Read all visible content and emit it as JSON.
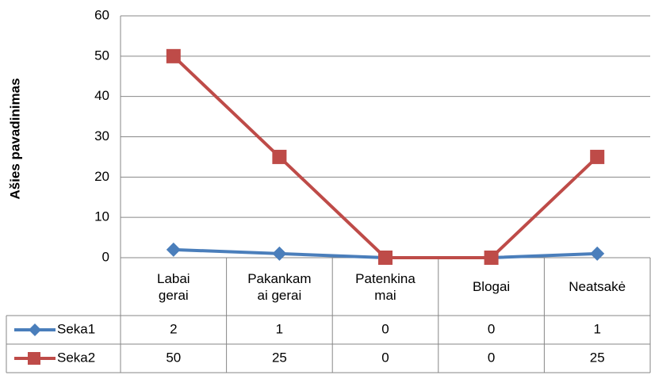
{
  "chart_data": {
    "type": "line",
    "y_axis_title": "Ašies pavadinimas",
    "categories": [
      "Labai gerai",
      "Pakankamai gerai",
      "Patenkinamai",
      "Blogai",
      "Neatsakė"
    ],
    "series": [
      {
        "name": "Seka1",
        "color": "#4a7ebb",
        "marker": "diamond",
        "values": [
          2,
          1,
          0,
          0,
          1
        ]
      },
      {
        "name": "Seka2",
        "color": "#be4b48",
        "marker": "square",
        "values": [
          50,
          25,
          0,
          0,
          25
        ]
      }
    ],
    "ylim": [
      0,
      60
    ],
    "yticks": [
      0,
      10,
      20,
      30,
      40,
      50,
      60
    ],
    "grid": true,
    "data_table": true
  }
}
